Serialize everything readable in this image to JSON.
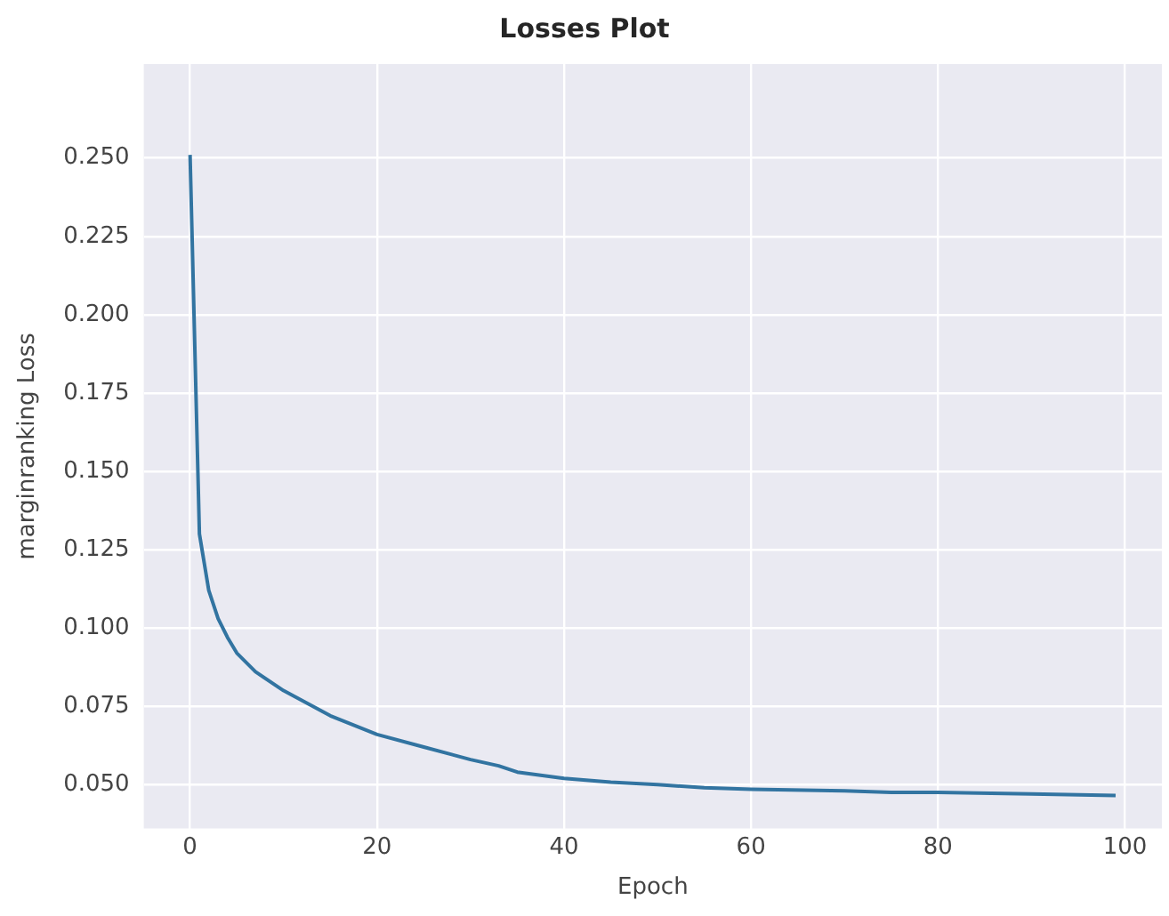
{
  "chart_data": {
    "type": "line",
    "title": "Losses Plot",
    "xlabel": "Epoch",
    "ylabel": "marginranking Loss",
    "xlim": [
      -4.95,
      103.95
    ],
    "xticks": [
      0,
      20,
      40,
      60,
      80,
      100
    ],
    "ylim": [
      0.036,
      0.28
    ],
    "yticks": [
      {
        "value": 0.05,
        "label": "0.050"
      },
      {
        "value": 0.075,
        "label": "0.075"
      },
      {
        "value": 0.1,
        "label": "0.100"
      },
      {
        "value": 0.125,
        "label": "0.125"
      },
      {
        "value": 0.15,
        "label": "0.150"
      },
      {
        "value": 0.175,
        "label": "0.175"
      },
      {
        "value": 0.2,
        "label": "0.200"
      },
      {
        "value": 0.225,
        "label": "0.225"
      },
      {
        "value": 0.25,
        "label": "0.250"
      }
    ],
    "grid": true,
    "legend": false,
    "series": [
      {
        "color": "#3274a1",
        "x": [
          0,
          1,
          2,
          3,
          4,
          5,
          7,
          10,
          15,
          20,
          25,
          30,
          33,
          35,
          40,
          45,
          50,
          55,
          60,
          70,
          75,
          80,
          90,
          99
        ],
        "values": [
          0.251,
          0.13,
          0.112,
          0.103,
          0.097,
          0.092,
          0.086,
          0.08,
          0.072,
          0.066,
          0.062,
          0.058,
          0.056,
          0.054,
          0.052,
          0.0508,
          0.05,
          0.049,
          0.0485,
          0.048,
          0.0475,
          0.0475,
          0.047,
          0.0465
        ]
      }
    ]
  }
}
